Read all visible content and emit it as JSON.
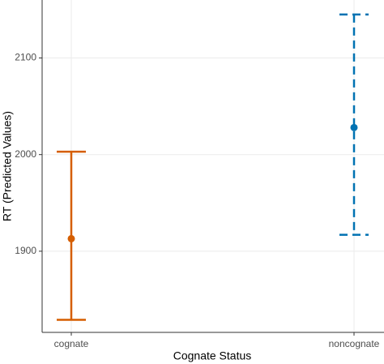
{
  "chart_data": {
    "type": "errorbar",
    "x_label": "Cognate Status",
    "y_label": "RT (Predicted Values)",
    "categories": [
      "cognate",
      "noncognate"
    ],
    "values": [
      1913,
      2028
    ],
    "lower": [
      1829,
      1917
    ],
    "upper": [
      2003,
      2145
    ],
    "colors": [
      "#d55e00",
      "#0072b2"
    ],
    "dashed": [
      false,
      true
    ],
    "ylim": [
      1816,
      2160
    ],
    "yticks": [
      1900,
      2000,
      2100
    ],
    "grid": true
  }
}
